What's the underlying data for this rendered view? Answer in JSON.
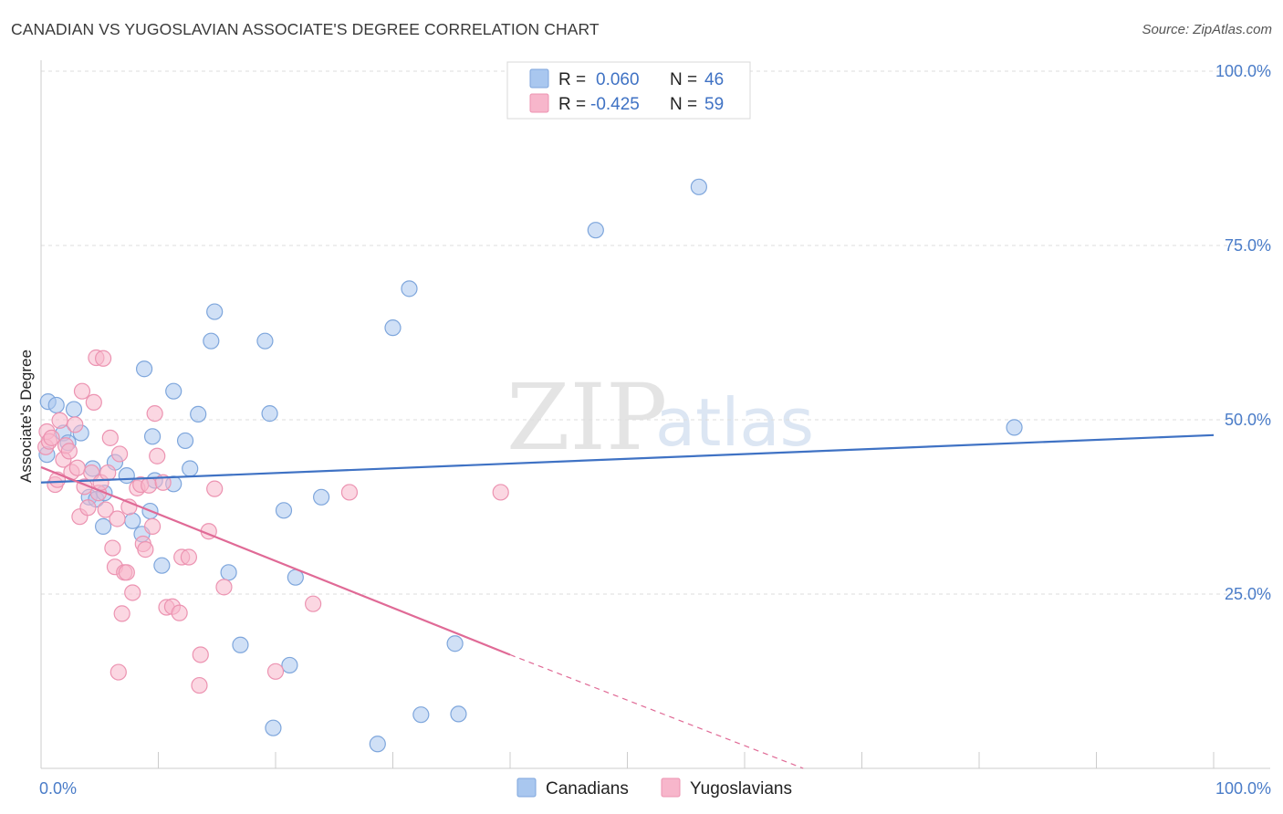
{
  "header": {
    "title": "CANADIAN VS YUGOSLAVIAN ASSOCIATE'S DEGREE CORRELATION CHART",
    "source": "Source: ZipAtlas.com"
  },
  "watermark": {
    "zip": "ZIP",
    "atlas": "atlas"
  },
  "legend": {
    "rows": [
      {
        "r_label": "R =",
        "r_value": "0.060",
        "n_label": "N =",
        "n_value": "46",
        "color": "#a9c7ef"
      },
      {
        "r_label": "R =",
        "r_value": "-0.425",
        "n_label": "N =",
        "n_value": "59",
        "color": "#f7b6cb"
      }
    ]
  },
  "chart_data": {
    "type": "scatter",
    "title": "CANADIAN VS YUGOSLAVIAN ASSOCIATE'S DEGREE CORRELATION CHART",
    "xlabel": "",
    "ylabel": "Associate's Degree",
    "xlim": [
      0,
      100
    ],
    "ylim": [
      0,
      100
    ],
    "x_tick_labels": [
      {
        "value": 0,
        "label": "0.0%"
      },
      {
        "value": 100,
        "label": "100.0%"
      }
    ],
    "y_tick_labels": [
      {
        "value": 100,
        "label": "100.0%"
      },
      {
        "value": 75,
        "label": "75.0%"
      },
      {
        "value": 50,
        "label": "50.0%"
      },
      {
        "value": 25,
        "label": "25.0%"
      }
    ],
    "grid": true,
    "series": [
      {
        "name": "Canadians",
        "color": "#a9c7ef",
        "stroke": "#7ea6dc",
        "line_color": "#3f72c4",
        "trend": {
          "x": [
            0,
            100
          ],
          "y": [
            41.0,
            47.8
          ]
        },
        "points": [
          [
            0.6,
            52.6
          ],
          [
            1.3,
            52.1
          ],
          [
            1.9,
            48.1
          ],
          [
            2.3,
            46.7
          ],
          [
            2.8,
            51.5
          ],
          [
            3.4,
            48.1
          ],
          [
            4.1,
            38.9
          ],
          [
            4.4,
            43.0
          ],
          [
            4.7,
            38.6
          ],
          [
            5.4,
            39.5
          ],
          [
            5.3,
            34.7
          ],
          [
            6.3,
            43.9
          ],
          [
            7.3,
            42.0
          ],
          [
            7.8,
            35.5
          ],
          [
            8.6,
            33.6
          ],
          [
            8.8,
            57.3
          ],
          [
            9.3,
            36.9
          ],
          [
            9.5,
            47.6
          ],
          [
            9.7,
            41.3
          ],
          [
            10.3,
            29.1
          ],
          [
            11.3,
            40.8
          ],
          [
            11.3,
            54.1
          ],
          [
            12.3,
            47.0
          ],
          [
            12.7,
            43.0
          ],
          [
            13.4,
            50.8
          ],
          [
            14.5,
            61.3
          ],
          [
            14.8,
            65.5
          ],
          [
            16.0,
            28.1
          ],
          [
            17.0,
            17.7
          ],
          [
            19.1,
            61.3
          ],
          [
            19.5,
            50.9
          ],
          [
            19.8,
            5.8
          ],
          [
            20.7,
            37.0
          ],
          [
            21.2,
            14.8
          ],
          [
            21.7,
            27.4
          ],
          [
            23.9,
            38.9
          ],
          [
            28.7,
            3.5
          ],
          [
            30.0,
            63.2
          ],
          [
            31.4,
            68.8
          ],
          [
            32.4,
            7.7
          ],
          [
            35.3,
            17.9
          ],
          [
            35.6,
            7.8
          ],
          [
            47.3,
            77.2
          ],
          [
            56.1,
            83.4
          ],
          [
            83.0,
            48.9
          ],
          [
            0.5,
            45.0
          ]
        ]
      },
      {
        "name": "Yugoslavians",
        "color": "#f7b6cb",
        "stroke": "#ec93b1",
        "line_color": "#e06a96",
        "trend": {
          "x": [
            0,
            40
          ],
          "y": [
            43.2,
            16.3
          ]
        },
        "trend_dashed": {
          "x": [
            40,
            65
          ],
          "y": [
            16.3,
            0
          ]
        },
        "points": [
          [
            0.4,
            46.1
          ],
          [
            0.5,
            48.3
          ],
          [
            0.7,
            46.9
          ],
          [
            0.9,
            47.4
          ],
          [
            1.2,
            40.7
          ],
          [
            1.4,
            41.4
          ],
          [
            1.6,
            49.9
          ],
          [
            1.9,
            44.3
          ],
          [
            2.1,
            46.3
          ],
          [
            2.4,
            45.5
          ],
          [
            2.6,
            42.5
          ],
          [
            2.9,
            49.3
          ],
          [
            3.1,
            43.1
          ],
          [
            3.3,
            36.1
          ],
          [
            3.5,
            54.1
          ],
          [
            3.7,
            40.4
          ],
          [
            4.0,
            37.4
          ],
          [
            4.3,
            42.4
          ],
          [
            4.5,
            52.5
          ],
          [
            4.7,
            58.9
          ],
          [
            4.9,
            39.5
          ],
          [
            5.1,
            41.0
          ],
          [
            5.3,
            58.8
          ],
          [
            5.5,
            37.1
          ],
          [
            5.7,
            42.4
          ],
          [
            5.9,
            47.4
          ],
          [
            6.1,
            31.6
          ],
          [
            6.3,
            28.9
          ],
          [
            6.5,
            35.8
          ],
          [
            6.7,
            45.1
          ],
          [
            6.9,
            22.2
          ],
          [
            7.1,
            28.1
          ],
          [
            7.3,
            28.1
          ],
          [
            7.5,
            37.5
          ],
          [
            7.8,
            25.2
          ],
          [
            8.2,
            40.2
          ],
          [
            8.5,
            40.7
          ],
          [
            8.7,
            32.2
          ],
          [
            8.9,
            31.4
          ],
          [
            9.2,
            40.6
          ],
          [
            9.5,
            34.7
          ],
          [
            9.7,
            50.9
          ],
          [
            9.9,
            44.8
          ],
          [
            10.4,
            41.0
          ],
          [
            10.7,
            23.1
          ],
          [
            11.2,
            23.2
          ],
          [
            11.8,
            22.3
          ],
          [
            12.0,
            30.3
          ],
          [
            13.5,
            11.9
          ],
          [
            13.6,
            16.3
          ],
          [
            14.3,
            34.0
          ],
          [
            14.8,
            40.1
          ],
          [
            15.6,
            26.0
          ],
          [
            20.0,
            13.9
          ],
          [
            23.2,
            23.6
          ],
          [
            26.3,
            39.6
          ],
          [
            39.2,
            39.6
          ],
          [
            6.6,
            13.8
          ],
          [
            12.6,
            30.3
          ]
        ]
      }
    ]
  },
  "bottom_legend": [
    {
      "label": "Canadians",
      "color": "#a9c7ef"
    },
    {
      "label": "Yugoslavians",
      "color": "#f7b6cb"
    }
  ]
}
